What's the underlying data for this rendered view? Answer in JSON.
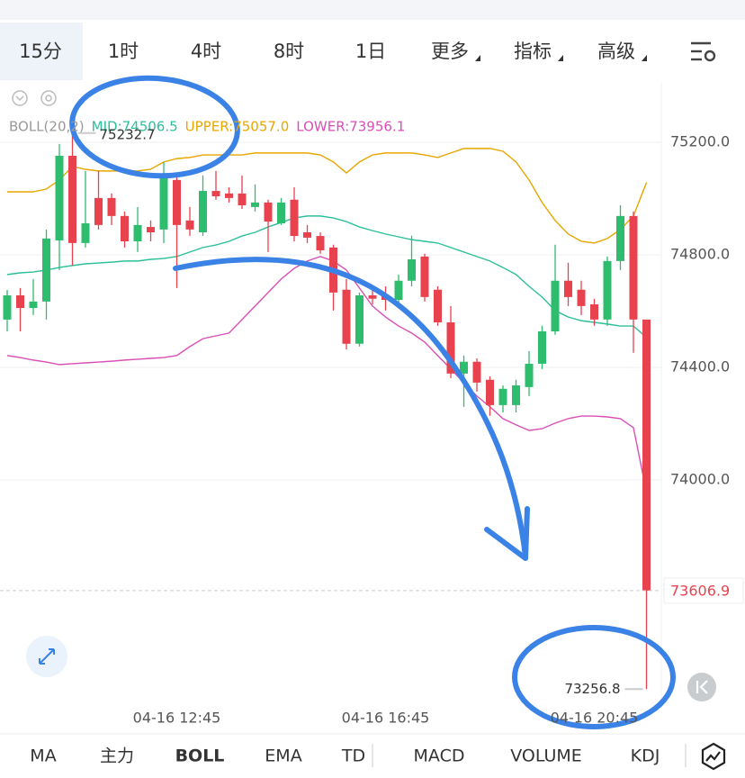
{
  "tabs": [
    {
      "label": "15分",
      "selected": true
    },
    {
      "label": "1时"
    },
    {
      "label": "4时"
    },
    {
      "label": "8时"
    },
    {
      "label": "1日"
    },
    {
      "label": "更多",
      "dropdown": true
    },
    {
      "label": "指标",
      "dropdown": true
    },
    {
      "label": "高级",
      "dropdown": true
    }
  ],
  "bottom_tabs": [
    {
      "label": "MA"
    },
    {
      "label": "主力"
    },
    {
      "label": "BOLL",
      "selected": true
    },
    {
      "label": "EMA"
    },
    {
      "label": "TD"
    },
    {
      "label": "MACD"
    },
    {
      "label": "VOLUME"
    },
    {
      "label": "KDJ"
    }
  ],
  "chart_data": {
    "type": "candlestick",
    "indicator": "BOLL(20,2)",
    "up_color": "#2ebd6e",
    "down_color": "#e8424f",
    "categories": [
      null,
      null,
      null,
      null,
      null,
      null,
      null,
      null,
      null,
      null,
      null,
      null,
      null,
      "04-16 12:45",
      null,
      null,
      null,
      null,
      null,
      null,
      null,
      null,
      null,
      null,
      null,
      null,
      null,
      null,
      null,
      "04-16 16:45",
      null,
      null,
      null,
      null,
      null,
      null,
      null,
      null,
      null,
      null,
      null,
      null,
      null,
      null,
      null,
      "04-16 20:45",
      null,
      null,
      null,
      null
    ],
    "open": [
      74570,
      74656,
      74611,
      74634,
      74851,
      75152,
      74842,
      75002,
      75002,
      74938,
      74848,
      74899,
      74890,
      75066,
      74922,
      74880,
      75027,
      75018,
      75018,
      74970,
      74986,
      74912,
      74996,
      74880,
      74867,
      74826,
      74676,
      74484,
      74656,
      74656,
      74640,
      74708,
      74794,
      74676,
      74560,
      74378,
      74420,
      74356,
      74266,
      74266,
      74330,
      74413,
      74528,
      74708,
      74676,
      74624,
      74570,
      74778,
      74938,
      74570
    ],
    "high": [
      74675,
      74682,
      74714,
      74890,
      75194,
      75232.7,
      75098,
      75098,
      75018,
      74954,
      74970,
      74922,
      75130,
      75082,
      74970,
      75082,
      75098,
      75040,
      75082,
      75050,
      74996,
      75002,
      75040,
      74906,
      74880,
      74836,
      74714,
      74666,
      74682,
      74688,
      74730,
      74868,
      74804,
      74688,
      74618,
      74442,
      74432,
      74368,
      74336,
      74356,
      74458,
      74548,
      74836,
      74772,
      74708,
      74644,
      74794,
      74976,
      74954,
      74570
    ],
    "low": [
      74528,
      74528,
      74586,
      74570,
      74746,
      74762,
      74826,
      74890,
      74906,
      74826,
      74810,
      74848,
      74842,
      74682,
      74867,
      74867,
      74996,
      74986,
      74963,
      74954,
      74810,
      74906,
      74848,
      74842,
      74804,
      74602,
      74464,
      74474,
      74624,
      74602,
      74618,
      74688,
      74634,
      74548,
      74362,
      74260,
      74314,
      74228,
      74240,
      74240,
      74298,
      74394,
      74516,
      74618,
      74586,
      74548,
      74548,
      74746,
      74452,
      73256.8
    ],
    "close": [
      74656,
      74611,
      74634,
      74858,
      75152,
      74842,
      74912,
      74906,
      74938,
      74848,
      74906,
      74880,
      75082,
      74906,
      74890,
      75027,
      75008,
      75002,
      74976,
      74986,
      74918,
      74986,
      74867,
      74861,
      74816,
      74666,
      74484,
      74656,
      74644,
      74640,
      74708,
      74784,
      74650,
      74560,
      74378,
      74420,
      74346,
      74266,
      74324,
      74336,
      74413,
      74528,
      74708,
      74650,
      74618,
      74570,
      74778,
      74938,
      74570,
      73606.9
    ],
    "series": [
      {
        "name": "MID",
        "label": "MID:74506.5",
        "color": "#2cbf9a",
        "values": [
          74730,
          74736,
          74739,
          74746,
          74755,
          74762,
          74768,
          74771,
          74774,
          74778,
          74778,
          74784,
          74787,
          74794,
          74810,
          74826,
          74835,
          74848,
          74867,
          74880,
          74899,
          74915,
          74931,
          74938,
          74938,
          74931,
          74918,
          74899,
          74886,
          74874,
          74864,
          74854,
          74848,
          74842,
          74826,
          74810,
          74794,
          74778,
          74755,
          74730,
          74688,
          74650,
          74602,
          74579,
          74566,
          74560,
          74554,
          74547,
          74547,
          74506.5
        ]
      },
      {
        "name": "UPPER",
        "label": "UPPER:75057.0",
        "color": "#e8a600",
        "values": [
          75024,
          75024,
          75024,
          75034,
          75066,
          75114,
          75104,
          75098,
          75098,
          75098,
          75098,
          75104,
          75130,
          75142,
          75146,
          75155,
          75155,
          75155,
          75155,
          75162,
          75162,
          75162,
          75162,
          75162,
          75155,
          75130,
          75091,
          75130,
          75155,
          75162,
          75162,
          75162,
          75155,
          75146,
          75162,
          75178,
          75178,
          75178,
          75168,
          75130,
          75066,
          74986,
          74922,
          74874,
          74848,
          74842,
          74858,
          74890,
          74938,
          75057.0
        ]
      },
      {
        "name": "LOWER",
        "label": "LOWER:73956.1",
        "color": "#d94fb4",
        "values": [
          74442,
          74435,
          74426,
          74419,
          74410,
          74413,
          74416,
          74419,
          74422,
          74426,
          74429,
          74432,
          74435,
          74442,
          74474,
          74502,
          74512,
          74522,
          74570,
          74618,
          74666,
          74714,
          74752,
          74778,
          74794,
          74778,
          74746,
          74682,
          74618,
          74579,
          74547,
          74522,
          74490,
          74442,
          74394,
          74346,
          74298,
          74260,
          74218,
          74196,
          74176,
          74182,
          74202,
          74218,
          74227,
          74227,
          74224,
          74218,
          74186,
          73956.1
        ]
      }
    ],
    "ylim": [
      73209.6,
      75411.2
    ],
    "yticks": [
      {
        "value": 74000,
        "label": "74000.0"
      },
      {
        "value": 74400,
        "label": "74400.0"
      },
      {
        "value": 74800,
        "label": "74800.0"
      },
      {
        "value": 75200,
        "label": "75200.0"
      }
    ],
    "grid": true,
    "high_label": "75232.7",
    "low_label": "73256.8",
    "last_price_label": "73606.9"
  }
}
